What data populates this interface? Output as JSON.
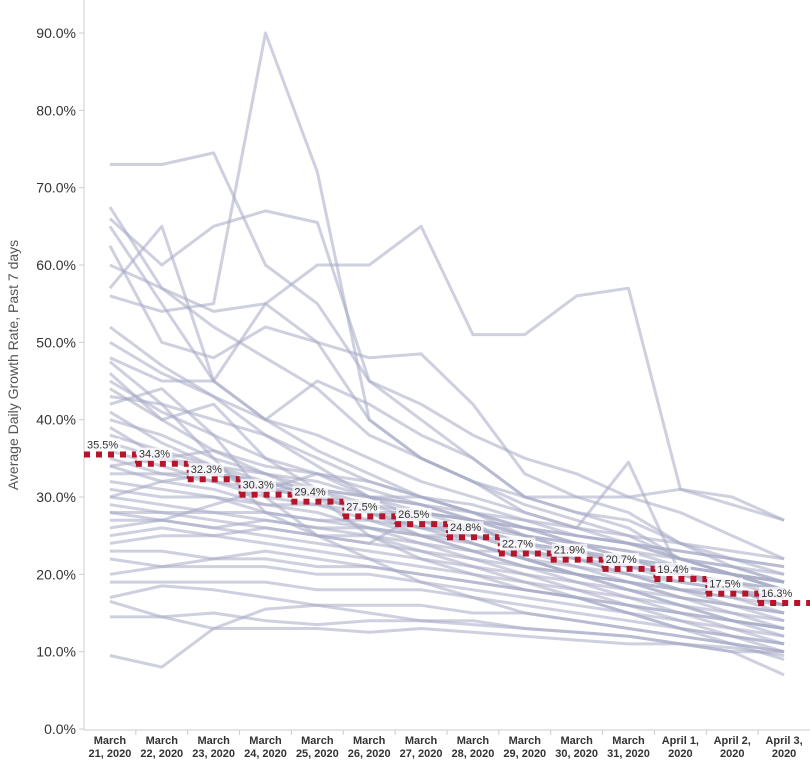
{
  "chart_data": {
    "type": "line",
    "ylabel": "Average Daily Growth Rate, Past 7 days",
    "ylim": [
      0,
      95
    ],
    "yticks": [
      0,
      10,
      20,
      30,
      40,
      50,
      60,
      70,
      80,
      90
    ],
    "ytick_labels": [
      "0.0%",
      "10.0%",
      "20.0%",
      "30.0%",
      "40.0%",
      "50.0%",
      "60.0%",
      "70.0%",
      "80.0%",
      "90.0%"
    ],
    "categories": [
      [
        "March",
        "21, 2020"
      ],
      [
        "March",
        "22, 2020"
      ],
      [
        "March",
        "23, 2020"
      ],
      [
        "March",
        "24, 2020"
      ],
      [
        "March",
        "25, 2020"
      ],
      [
        "March",
        "26, 2020"
      ],
      [
        "March",
        "27, 2020"
      ],
      [
        "March",
        "28, 2020"
      ],
      [
        "March",
        "29, 2020"
      ],
      [
        "March",
        "30, 2020"
      ],
      [
        "March",
        "31, 2020"
      ],
      [
        "April 1,",
        "2020"
      ],
      [
        "April 2,",
        "2020"
      ],
      [
        "April 3,",
        "2020"
      ]
    ],
    "average": {
      "values": [
        35.5,
        34.3,
        32.3,
        30.3,
        29.4,
        27.5,
        26.5,
        24.8,
        22.7,
        21.9,
        20.7,
        19.4,
        17.5,
        16.3
      ],
      "labels": [
        "35.5%",
        "34.3%",
        "32.3%",
        "30.3%",
        "29.4%",
        "27.5%",
        "26.5%",
        "24.8%",
        "22.7%",
        "21.9%",
        "20.7%",
        "19.4%",
        "17.5%",
        "16.3%"
      ],
      "color": "#b5152b"
    },
    "series_color": "#a5a9c4",
    "series": [
      {
        "values": [
          56,
          54,
          55,
          90,
          72,
          40,
          35,
          32,
          30,
          30,
          30,
          31,
          29,
          27
        ]
      },
      {
        "values": [
          73,
          73,
          74.5,
          60,
          55,
          45,
          40,
          35,
          30,
          28,
          27,
          24,
          21,
          19
        ]
      },
      {
        "values": [
          66,
          60,
          65,
          67,
          65.5,
          45,
          42,
          38,
          35,
          33,
          30,
          28,
          25,
          22
        ]
      },
      {
        "values": [
          60,
          57,
          54,
          55,
          60,
          60,
          65,
          51,
          51,
          56,
          57,
          31,
          30,
          27
        ]
      },
      {
        "values": [
          62.5,
          50,
          48,
          52,
          50,
          40,
          35,
          32,
          28,
          26,
          34.5,
          20,
          18,
          16
        ]
      },
      {
        "values": [
          65,
          55,
          45,
          40,
          36,
          33,
          30,
          28,
          25,
          24,
          22,
          20,
          18,
          16
        ]
      },
      {
        "values": [
          48,
          45,
          45,
          55,
          50,
          48,
          48.5,
          42,
          33,
          30,
          28,
          24,
          22,
          20
        ]
      },
      {
        "values": [
          57,
          65,
          45,
          40,
          45,
          42,
          38,
          35,
          30,
          28,
          26,
          22,
          21,
          19
        ]
      },
      {
        "values": [
          67.5,
          57,
          52,
          48,
          44,
          38,
          35,
          32,
          29,
          27,
          25,
          22,
          20,
          18
        ]
      },
      {
        "values": [
          43,
          42,
          40,
          38,
          35,
          32,
          30,
          28,
          26,
          24,
          22,
          20,
          19,
          17
        ]
      },
      {
        "values": [
          50,
          46,
          43,
          40,
          38,
          35,
          32,
          30,
          28,
          26,
          24,
          22,
          20,
          18
        ]
      },
      {
        "values": [
          45,
          41,
          38,
          35,
          33,
          31,
          29,
          27,
          25,
          23,
          21,
          19,
          18,
          16
        ]
      },
      {
        "values": [
          40,
          38,
          35,
          33,
          31,
          29,
          27,
          25,
          23,
          22,
          20,
          18,
          17,
          15
        ]
      },
      {
        "values": [
          38,
          36,
          34,
          32,
          30,
          28,
          26,
          24,
          22,
          21,
          19,
          18,
          16,
          15
        ]
      },
      {
        "values": [
          36,
          34,
          32,
          30,
          29,
          27,
          25,
          24,
          22,
          20,
          19,
          17,
          16,
          14
        ]
      },
      {
        "values": [
          34,
          32,
          31,
          29,
          28,
          26,
          25,
          23,
          21,
          20,
          18,
          17,
          15,
          14
        ]
      },
      {
        "values": [
          32,
          31,
          30,
          28,
          27,
          26,
          24,
          22,
          21,
          19,
          18,
          16,
          15,
          13
        ]
      },
      {
        "values": [
          30,
          29,
          28,
          27,
          26,
          25,
          23,
          22,
          20,
          19,
          17,
          16,
          14,
          13
        ]
      },
      {
        "values": [
          28,
          28,
          27,
          26,
          25,
          24,
          23,
          21,
          20,
          18,
          17,
          15,
          14,
          12
        ]
      },
      {
        "values": [
          26,
          27,
          26,
          25,
          24,
          23,
          22,
          21,
          19,
          18,
          16,
          15,
          13,
          12
        ]
      },
      {
        "values": [
          24,
          25,
          25,
          24,
          23,
          22,
          21,
          20,
          19,
          17,
          16,
          14,
          13,
          11
        ]
      },
      {
        "values": [
          23,
          23,
          22,
          22,
          21,
          21,
          20,
          19,
          18,
          17,
          15,
          14,
          12,
          11
        ]
      },
      {
        "values": [
          22,
          21,
          21,
          21,
          20,
          20,
          19,
          18,
          17,
          16,
          15,
          13,
          12,
          10
        ]
      },
      {
        "values": [
          19,
          19,
          19,
          19,
          18,
          18,
          18,
          17,
          16,
          15,
          14,
          13,
          11,
          10
        ]
      },
      {
        "values": [
          17,
          18.5,
          18,
          17,
          16,
          16,
          16,
          15,
          15,
          14,
          13,
          12,
          11,
          9
        ]
      },
      {
        "values": [
          16.5,
          14.5,
          15,
          14,
          13.5,
          14,
          14,
          13.5,
          13,
          12.5,
          12,
          11,
          10.5,
          9.5
        ]
      },
      {
        "values": [
          14.5,
          14.5,
          13,
          13,
          13,
          12.5,
          13,
          12.5,
          12,
          11.5,
          11,
          11,
          10,
          10
        ]
      },
      {
        "values": [
          9.5,
          8,
          13,
          15.5,
          16,
          15,
          14,
          14,
          13,
          12.5,
          12,
          11,
          10,
          7
        ]
      },
      {
        "values": [
          47.5,
          42,
          35,
          28,
          25,
          24,
          28,
          27,
          22,
          20,
          18,
          16,
          14,
          13
        ]
      },
      {
        "values": [
          44,
          40,
          36,
          33,
          32,
          30,
          28,
          26,
          24,
          22,
          20,
          19,
          18,
          17
        ]
      },
      {
        "values": [
          41,
          37,
          34,
          31,
          30,
          28,
          26,
          25,
          23,
          21,
          20,
          18,
          17,
          16
        ]
      },
      {
        "values": [
          35,
          33,
          33,
          32,
          31,
          30,
          30,
          29,
          27,
          25,
          24,
          23,
          22,
          21
        ]
      },
      {
        "values": [
          33,
          33,
          32,
          31,
          31,
          30,
          29,
          28,
          27,
          26,
          25,
          24,
          23,
          22
        ]
      },
      {
        "values": [
          31,
          30,
          30,
          29,
          29,
          28,
          28,
          27,
          26,
          25,
          24,
          23,
          22,
          21
        ]
      },
      {
        "values": [
          29,
          28,
          28,
          28,
          27,
          27,
          26,
          26,
          25,
          24,
          23,
          22,
          21,
          20
        ]
      },
      {
        "values": [
          27,
          27,
          26,
          27,
          26,
          26,
          25,
          25,
          24,
          23,
          22,
          21,
          20,
          19
        ]
      },
      {
        "values": [
          25,
          26,
          25,
          26,
          25,
          25,
          24,
          23,
          23,
          22,
          21,
          20,
          19,
          18
        ]
      },
      {
        "values": [
          39,
          35,
          34,
          33,
          30,
          25,
          22,
          20,
          18,
          17,
          15,
          13,
          12,
          11
        ]
      },
      {
        "values": [
          42,
          44,
          38,
          30,
          25,
          22,
          19,
          17,
          15,
          14,
          13,
          12,
          11,
          10
        ]
      },
      {
        "values": [
          46,
          40,
          42,
          35,
          31,
          28,
          25,
          23,
          21,
          20,
          19,
          18,
          18,
          17
        ]
      },
      {
        "values": [
          52,
          47,
          43,
          38,
          34,
          30,
          27,
          24,
          22,
          20,
          19,
          17,
          16,
          15
        ]
      },
      {
        "values": [
          37,
          35,
          33,
          31,
          30,
          29,
          28,
          27,
          26,
          25,
          24,
          22,
          20,
          18
        ]
      },
      {
        "values": [
          30,
          32,
          33,
          32,
          30,
          28,
          27,
          26,
          24,
          23,
          21,
          20,
          19,
          18
        ]
      },
      {
        "values": [
          20,
          21,
          22,
          23,
          22,
          21,
          20,
          19,
          18,
          17,
          16,
          15,
          14,
          13
        ]
      },
      {
        "values": [
          28,
          27,
          29,
          31,
          33,
          30,
          29,
          27,
          25,
          23,
          22,
          21,
          20,
          19
        ]
      },
      {
        "values": [
          34,
          35,
          36,
          34,
          33,
          32,
          30,
          28,
          26,
          24,
          23,
          21,
          20,
          19
        ]
      }
    ]
  }
}
